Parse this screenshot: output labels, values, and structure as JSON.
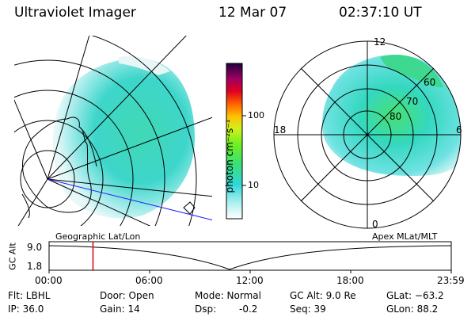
{
  "header": {
    "instrument": "Ultraviolet Imager",
    "date": "12 Mar 07",
    "time": "02:37:10 UT"
  },
  "colorbar": {
    "unit_label": "photon cm⁻²s⁻¹",
    "ticks": [
      "100",
      "10"
    ],
    "scale": "log"
  },
  "polar_plot": {
    "mlt_labels": {
      "top": "12",
      "left": "18",
      "right": "6",
      "bottom": "0"
    },
    "lat_labels": [
      "60",
      "70",
      "80"
    ]
  },
  "panel_labels": {
    "left": "Geographic Lat/Lon",
    "right": "Apex MLat/MLT"
  },
  "orbit_plot": {
    "ylabel": "GC Alt",
    "y_top": "9.0",
    "y_bottom": "1.8",
    "x_ticks": [
      "00:00",
      "06:00",
      "12:00",
      "18:00",
      "23:59"
    ],
    "marker_hour": 2.62
  },
  "footer": {
    "filter": "Flt: LBHL",
    "ip": "IP: 36.0",
    "door": "Door: Open",
    "gain": "Gain: 14",
    "mode": "Mode: Normal",
    "dsp_label": "Dsp:",
    "dsp_value": "-0.2",
    "gc_alt": "GC Alt: 9.0 Re",
    "seq": "Seq: 39",
    "glat": "GLat: −63.2",
    "glon": "GLon: 88.2"
  },
  "colors": {
    "marker": "#e00000",
    "blue_line": "#2020ff"
  }
}
